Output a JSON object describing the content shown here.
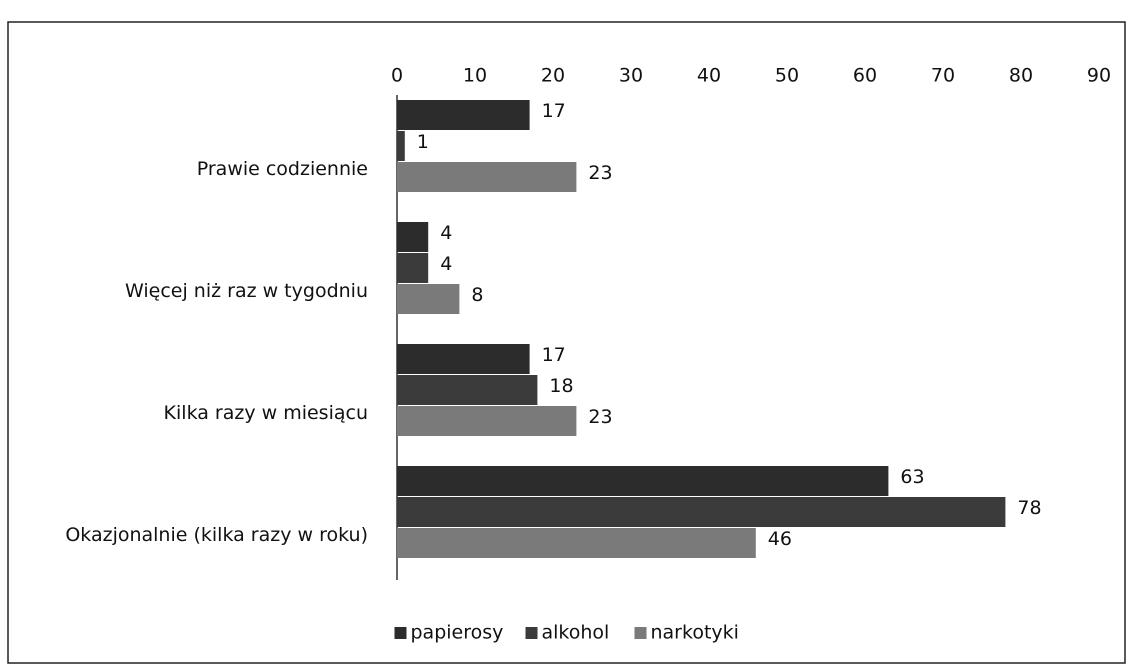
{
  "chart_data": {
    "type": "bar",
    "orientation": "horizontal",
    "categories": [
      "Prawie codziennie",
      "Więcej niż raz w tygodniu",
      "Kilka razy w miesiącu",
      "Okazjonalnie (kilka razy w roku)"
    ],
    "series": [
      {
        "name": "papierosy",
        "color": "#2c2c2c",
        "values": [
          17,
          4,
          17,
          63
        ]
      },
      {
        "name": "alkohol",
        "color": "#3b3b3b",
        "values": [
          1,
          4,
          18,
          78
        ]
      },
      {
        "name": "narkotyki",
        "color": "#7a7a7a",
        "values": [
          23,
          8,
          23,
          46
        ]
      }
    ],
    "xlim": [
      0,
      90
    ],
    "xticks": [
      0,
      10,
      20,
      30,
      40,
      50,
      60,
      70,
      80,
      90
    ],
    "grid": false,
    "legend": "bottom"
  }
}
